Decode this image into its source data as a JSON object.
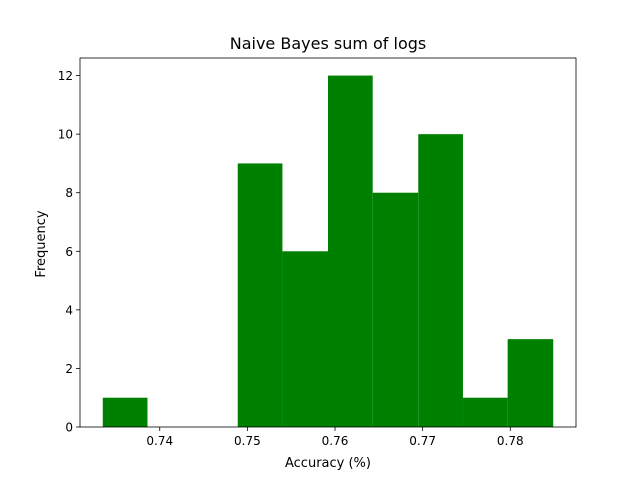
{
  "chart_data": {
    "type": "bar",
    "title": "Naive Bayes sum of logs",
    "xlabel": "Accuracy (%)",
    "ylabel": "Frequency",
    "bin_edges": [
      0.7335,
      0.7386,
      0.7438,
      0.7489,
      0.754,
      0.7592,
      0.7643,
      0.7695,
      0.7746,
      0.7797,
      0.7849
    ],
    "values": [
      1,
      0,
      0,
      9,
      6,
      12,
      8,
      10,
      1,
      3
    ],
    "xlim": [
      0.7309,
      0.7875
    ],
    "ylim": [
      0,
      12.6
    ],
    "xticks": [
      0.74,
      0.75,
      0.76,
      0.77,
      0.78
    ],
    "xtick_labels": [
      "0.74",
      "0.75",
      "0.76",
      "0.77",
      "0.78"
    ],
    "yticks": [
      0,
      2,
      4,
      6,
      8,
      10,
      12
    ],
    "ytick_labels": [
      "0",
      "2",
      "4",
      "6",
      "8",
      "10",
      "12"
    ],
    "grid": false,
    "bar_color": "#008000"
  }
}
